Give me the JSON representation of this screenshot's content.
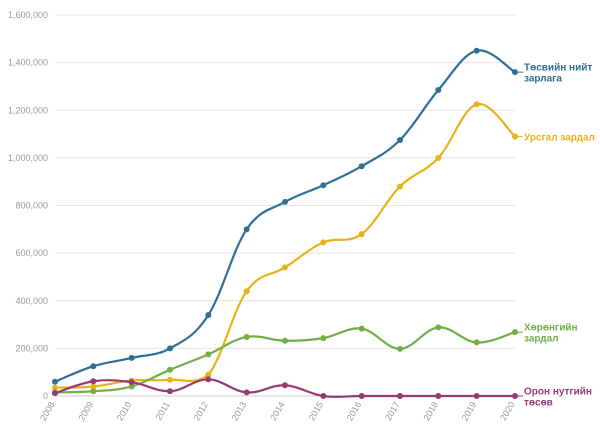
{
  "chart_data": {
    "type": "line",
    "x": [
      "2008",
      "2009",
      "2010",
      "2011",
      "2012",
      "2013",
      "2014",
      "2015",
      "2016",
      "2017",
      "2018",
      "2019",
      "2020"
    ],
    "ylim": [
      0,
      1600000
    ],
    "yticks": [
      "0",
      "200,000",
      "400,000",
      "600,000",
      "800,000",
      "1,000,000",
      "1,200,000",
      "1,400,000",
      "1,600,000"
    ],
    "ytick_values": [
      0,
      200000,
      400000,
      600000,
      800000,
      1000000,
      1200000,
      1400000,
      1600000
    ],
    "grid": true,
    "series": [
      {
        "name": "Төсвийн нийт зарлага",
        "label_lines": [
          "Төсвийн нийт",
          "зарлага"
        ],
        "color": "#2e6f96",
        "values": [
          60000,
          125000,
          160000,
          200000,
          340000,
          700000,
          815000,
          885000,
          965000,
          1075000,
          1285000,
          1450000,
          1360000
        ]
      },
      {
        "name": "Урсгал зардал",
        "label_lines": [
          "Урсгал зардал"
        ],
        "color": "#e8b319",
        "values": [
          35000,
          40000,
          65000,
          68000,
          90000,
          440000,
          540000,
          645000,
          680000,
          880000,
          1000000,
          1225000,
          1090000
        ]
      },
      {
        "name": "Хөрөнгийн зардал",
        "label_lines": [
          "Хөрөнгийн",
          "зардал"
        ],
        "color": "#72ad48",
        "values": [
          15000,
          20000,
          40000,
          110000,
          175000,
          248000,
          232000,
          243000,
          283000,
          198000,
          288000,
          225000,
          268000
        ]
      },
      {
        "name": "Орон нутгийн төсөв",
        "label_lines": [
          "Орон нутгийн",
          "төсөв"
        ],
        "color": "#973a72",
        "values": [
          12000,
          62000,
          58000,
          20000,
          70000,
          15000,
          45000,
          0,
          0,
          0,
          0,
          0,
          0
        ]
      }
    ]
  }
}
